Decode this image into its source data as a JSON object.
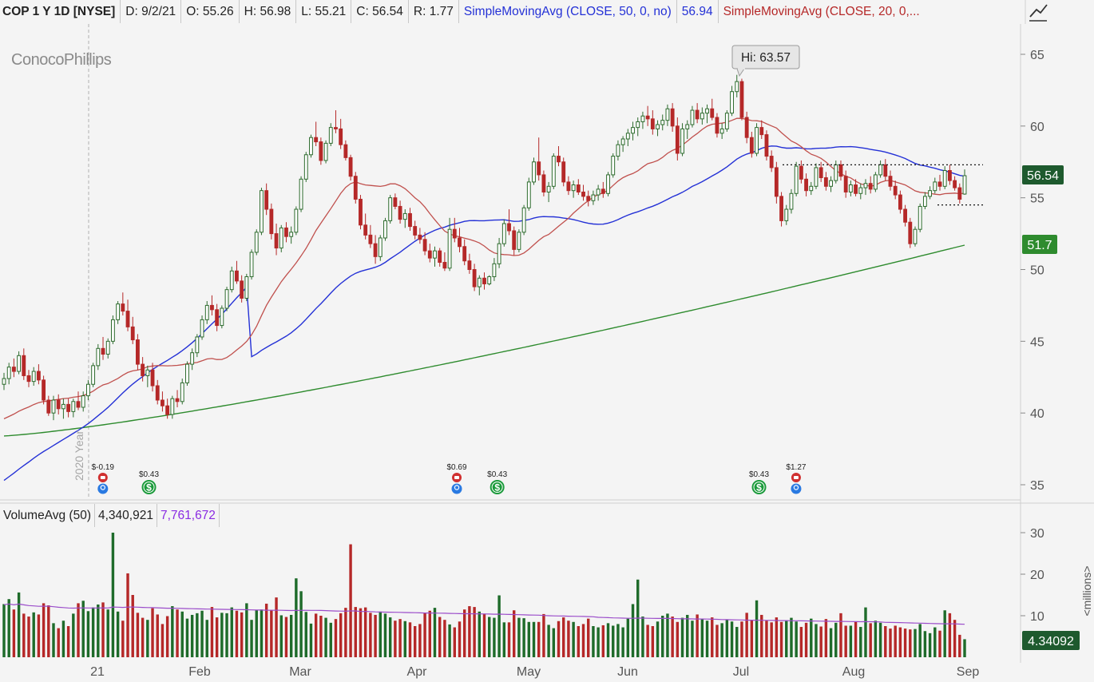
{
  "header": {
    "symbol": "COP 1 Y 1D [NYSE]",
    "date": "D: 9/2/21",
    "open": "O: 55.26",
    "high": "H: 56.98",
    "low": "L: 55.21",
    "close": "C: 56.54",
    "range": "R: 1.77",
    "sma50_label": "SimpleMovingAvg (CLOSE, 50, 0, no)",
    "sma50_value": "56.94",
    "sma20_label": "SimpleMovingAvg (CLOSE, 20, 0,..."
  },
  "logo": "ConocoPhillips",
  "year_marker": "2020 Year",
  "hi_label": "Hi: 63.57",
  "price_badge": "56.54",
  "sma200_badge": "51.7",
  "volume_badge": "4.34092",
  "volume_header": {
    "title": "VolumeAvg (50)",
    "value": "4,340,921",
    "avg": "7,761,672"
  },
  "volume_unit": "<millions>",
  "events": [
    {
      "label": "$-0.19",
      "month_idx": 0.88,
      "type": "earnings"
    },
    {
      "label": "$0.43",
      "month_idx": 1.29,
      "type": "dividend"
    },
    {
      "label": "$0.69",
      "month_idx": 4.03,
      "type": "earnings"
    },
    {
      "label": "$0.43",
      "month_idx": 4.39,
      "type": "dividend"
    },
    {
      "label": "$0.43",
      "month_idx": 6.72,
      "type": "dividend"
    },
    {
      "label": "$1.27",
      "month_idx": 7.05,
      "type": "earnings"
    }
  ],
  "colors": {
    "up": "#2d6b2d",
    "down": "#b52828",
    "sma20": "#c0504d",
    "sma50": "#2431d6",
    "sma200": "#2e8b2e",
    "vol_avg": "#9b4dca",
    "badge_dark": "#1e5a2e",
    "badge_green": "#2e8b2e"
  },
  "chart_data": {
    "type": "candlestick",
    "title": "COP 1 Y 1D [NYSE]",
    "y_axis": {
      "min": 35,
      "max": 65,
      "ticks": [
        35,
        40,
        45,
        50,
        55,
        60,
        65
      ]
    },
    "volume_axis": {
      "min": 0,
      "max": 30,
      "ticks": [
        10,
        20,
        30
      ],
      "unit": "<millions>"
    },
    "x_ticks": [
      "21",
      "Feb",
      "Mar",
      "Apr",
      "May",
      "Jun",
      "Jul",
      "Aug",
      "Sep"
    ],
    "resistance_level": 57.3,
    "support_level": 54.5,
    "candles": [
      [
        42.0,
        42.8,
        41.6,
        42.4
      ],
      [
        42.4,
        43.5,
        42.0,
        43.2
      ],
      [
        43.2,
        43.8,
        42.5,
        42.9
      ],
      [
        42.9,
        44.3,
        42.7,
        44.0
      ],
      [
        44.0,
        44.5,
        42.3,
        42.6
      ],
      [
        42.6,
        43.0,
        41.8,
        42.2
      ],
      [
        42.2,
        43.2,
        41.9,
        42.9
      ],
      [
        42.9,
        43.4,
        42.0,
        42.3
      ],
      [
        42.3,
        42.6,
        40.6,
        40.9
      ],
      [
        40.9,
        41.2,
        39.8,
        40.0
      ],
      [
        40.0,
        41.2,
        39.5,
        40.9
      ],
      [
        40.9,
        41.3,
        39.9,
        40.3
      ],
      [
        40.3,
        41.0,
        39.6,
        40.6
      ],
      [
        40.6,
        41.0,
        39.7,
        40.1
      ],
      [
        40.1,
        41.0,
        39.7,
        40.8
      ],
      [
        40.8,
        41.5,
        40.2,
        40.4
      ],
      [
        40.4,
        41.5,
        40.1,
        41.2
      ],
      [
        41.2,
        42.3,
        40.9,
        42.0
      ],
      [
        42.0,
        43.5,
        41.8,
        43.3
      ],
      [
        43.3,
        44.8,
        43.0,
        44.5
      ],
      [
        44.5,
        45.3,
        43.7,
        44.1
      ],
      [
        44.1,
        45.2,
        43.8,
        45.0
      ],
      [
        45.0,
        46.8,
        44.8,
        46.5
      ],
      [
        46.5,
        47.8,
        46.2,
        47.6
      ],
      [
        47.6,
        48.4,
        46.8,
        47.1
      ],
      [
        47.1,
        47.9,
        45.7,
        46.0
      ],
      [
        46.0,
        46.7,
        44.8,
        45.1
      ],
      [
        45.1,
        45.5,
        43.0,
        43.4
      ],
      [
        43.4,
        43.9,
        42.2,
        42.6
      ],
      [
        42.6,
        43.3,
        41.8,
        43.0
      ],
      [
        43.0,
        43.5,
        41.5,
        41.9
      ],
      [
        41.9,
        42.3,
        40.6,
        40.9
      ],
      [
        40.9,
        41.5,
        40.1,
        40.5
      ],
      [
        40.5,
        41.0,
        39.6,
        39.9
      ],
      [
        39.9,
        41.2,
        39.6,
        41.0
      ],
      [
        41.0,
        41.6,
        40.4,
        40.8
      ],
      [
        40.8,
        42.4,
        40.6,
        42.1
      ],
      [
        42.1,
        43.6,
        41.9,
        43.4
      ],
      [
        43.4,
        44.5,
        43.0,
        44.2
      ],
      [
        44.2,
        45.5,
        43.9,
        45.3
      ],
      [
        45.3,
        46.8,
        45.1,
        46.5
      ],
      [
        46.5,
        47.8,
        46.2,
        47.5
      ],
      [
        47.5,
        48.2,
        46.8,
        47.2
      ],
      [
        47.2,
        47.6,
        45.7,
        46.1
      ],
      [
        46.1,
        47.5,
        45.9,
        47.3
      ],
      [
        47.3,
        48.8,
        47.1,
        48.6
      ],
      [
        48.6,
        50.2,
        48.4,
        49.9
      ],
      [
        49.9,
        50.6,
        49.0,
        49.2
      ],
      [
        49.2,
        49.6,
        47.7,
        48.0
      ],
      [
        48.0,
        49.7,
        47.8,
        49.5
      ],
      [
        49.5,
        51.4,
        49.3,
        51.2
      ],
      [
        51.2,
        52.8,
        51.0,
        52.6
      ],
      [
        52.6,
        55.7,
        52.4,
        55.5
      ],
      [
        55.5,
        56.0,
        53.8,
        54.2
      ],
      [
        54.2,
        54.6,
        52.1,
        52.5
      ],
      [
        52.5,
        53.2,
        51.0,
        51.5
      ],
      [
        51.5,
        53.1,
        51.2,
        52.9
      ],
      [
        52.9,
        53.3,
        51.9,
        52.3
      ],
      [
        52.3,
        53.0,
        51.8,
        52.6
      ],
      [
        52.6,
        54.4,
        52.4,
        54.2
      ],
      [
        54.2,
        56.5,
        54.0,
        56.3
      ],
      [
        56.3,
        58.2,
        56.1,
        58.0
      ],
      [
        58.0,
        59.4,
        57.8,
        59.2
      ],
      [
        59.2,
        60.3,
        58.6,
        58.9
      ],
      [
        58.9,
        59.2,
        57.3,
        57.6
      ],
      [
        57.6,
        59.0,
        57.4,
        58.8
      ],
      [
        58.8,
        60.2,
        58.6,
        59.9
      ],
      [
        59.9,
        61.1,
        59.5,
        59.8
      ],
      [
        59.8,
        60.5,
        58.4,
        58.7
      ],
      [
        58.7,
        59.0,
        57.6,
        57.8
      ],
      [
        57.8,
        58.0,
        56.2,
        56.5
      ],
      [
        56.5,
        56.8,
        54.6,
        54.9
      ],
      [
        54.9,
        55.2,
        52.8,
        53.1
      ],
      [
        53.1,
        53.9,
        52.1,
        52.4
      ],
      [
        52.4,
        53.1,
        51.5,
        51.8
      ],
      [
        51.8,
        52.4,
        50.4,
        50.9
      ],
      [
        50.9,
        52.4,
        50.6,
        52.2
      ],
      [
        52.2,
        53.6,
        52.0,
        53.4
      ],
      [
        53.4,
        55.2,
        53.2,
        55.0
      ],
      [
        55.0,
        55.3,
        54.2,
        54.4
      ],
      [
        54.4,
        54.8,
        53.2,
        53.5
      ],
      [
        53.5,
        54.2,
        52.9,
        53.9
      ],
      [
        53.9,
        54.3,
        52.7,
        53.0
      ],
      [
        53.0,
        53.4,
        52.1,
        52.4
      ],
      [
        52.4,
        52.9,
        51.8,
        52.1
      ],
      [
        52.1,
        52.6,
        51.0,
        51.3
      ],
      [
        51.3,
        51.8,
        50.5,
        50.8
      ],
      [
        50.8,
        51.6,
        50.2,
        51.3
      ],
      [
        51.3,
        51.5,
        50.2,
        50.5
      ],
      [
        50.5,
        51.2,
        49.9,
        50.1
      ],
      [
        50.1,
        53.6,
        49.9,
        52.8
      ],
      [
        52.8,
        53.6,
        51.9,
        52.2
      ],
      [
        52.2,
        52.9,
        51.2,
        51.6
      ],
      [
        51.6,
        52.1,
        50.3,
        50.6
      ],
      [
        50.6,
        51.1,
        49.7,
        50.0
      ],
      [
        50.0,
        50.4,
        48.5,
        48.8
      ],
      [
        48.8,
        49.6,
        48.2,
        49.4
      ],
      [
        49.4,
        49.8,
        48.6,
        49.0
      ],
      [
        49.0,
        49.6,
        48.9,
        49.5
      ],
      [
        49.5,
        50.8,
        49.2,
        50.4
      ],
      [
        50.4,
        52.2,
        50.1,
        51.8
      ],
      [
        51.8,
        53.5,
        51.6,
        53.2
      ],
      [
        53.2,
        54.2,
        52.4,
        52.7
      ],
      [
        52.7,
        53.0,
        51.0,
        51.4
      ],
      [
        51.4,
        52.8,
        51.2,
        52.6
      ],
      [
        52.6,
        54.5,
        52.4,
        54.3
      ],
      [
        54.3,
        56.4,
        54.1,
        56.1
      ],
      [
        56.1,
        57.8,
        55.9,
        57.5
      ],
      [
        57.5,
        59.2,
        56.2,
        56.6
      ],
      [
        56.6,
        56.9,
        55.1,
        55.4
      ],
      [
        55.4,
        56.1,
        54.7,
        55.8
      ],
      [
        55.8,
        58.1,
        55.6,
        57.9
      ],
      [
        57.9,
        58.6,
        57.2,
        57.5
      ],
      [
        57.5,
        57.8,
        55.8,
        56.1
      ],
      [
        56.1,
        56.5,
        55.2,
        55.5
      ],
      [
        55.5,
        56.2,
        55.0,
        55.9
      ],
      [
        55.9,
        56.3,
        55.2,
        55.4
      ],
      [
        55.4,
        55.9,
        54.8,
        55.1
      ],
      [
        55.1,
        55.5,
        54.4,
        54.8
      ],
      [
        54.8,
        55.5,
        54.5,
        55.2
      ],
      [
        55.2,
        55.9,
        54.8,
        55.6
      ],
      [
        55.6,
        56.1,
        55.0,
        55.3
      ],
      [
        55.3,
        56.8,
        55.1,
        56.6
      ],
      [
        56.6,
        58.1,
        56.4,
        57.9
      ],
      [
        57.9,
        59.0,
        57.6,
        58.7
      ],
      [
        58.7,
        59.3,
        58.2,
        59.1
      ],
      [
        59.1,
        59.8,
        58.6,
        59.5
      ],
      [
        59.5,
        60.3,
        59.0,
        59.9
      ],
      [
        59.9,
        60.6,
        59.3,
        60.3
      ],
      [
        60.3,
        61.0,
        59.8,
        60.7
      ],
      [
        60.7,
        61.4,
        60.0,
        60.5
      ],
      [
        60.5,
        61.1,
        59.4,
        59.8
      ],
      [
        59.8,
        60.4,
        59.3,
        60.1
      ],
      [
        60.1,
        60.8,
        59.7,
        60.4
      ],
      [
        60.4,
        61.5,
        60.0,
        61.2
      ],
      [
        61.2,
        61.6,
        59.6,
        60.0
      ],
      [
        60.0,
        60.6,
        57.6,
        58.1
      ],
      [
        58.1,
        60.2,
        57.9,
        59.8
      ],
      [
        59.8,
        60.4,
        59.1,
        60.1
      ],
      [
        60.1,
        61.4,
        59.9,
        61.1
      ],
      [
        61.1,
        61.6,
        60.2,
        60.5
      ],
      [
        60.5,
        61.3,
        60.1,
        60.9
      ],
      [
        60.9,
        61.5,
        60.2,
        61.2
      ],
      [
        61.2,
        61.9,
        60.4,
        60.6
      ],
      [
        60.6,
        60.9,
        59.2,
        59.5
      ],
      [
        59.5,
        60.2,
        59.1,
        59.8
      ],
      [
        59.8,
        61.1,
        59.6,
        60.9
      ],
      [
        60.9,
        62.8,
        60.7,
        62.4
      ],
      [
        62.4,
        63.57,
        62.0,
        63.1
      ],
      [
        63.1,
        63.3,
        60.4,
        60.6
      ],
      [
        60.6,
        61.0,
        58.8,
        59.2
      ],
      [
        59.2,
        59.6,
        57.8,
        58.1
      ],
      [
        58.1,
        60.2,
        57.9,
        59.9
      ],
      [
        59.9,
        60.4,
        59.1,
        59.4
      ],
      [
        59.4,
        59.7,
        57.6,
        57.9
      ],
      [
        57.9,
        58.3,
        56.8,
        57.1
      ],
      [
        57.1,
        57.5,
        54.6,
        55.1
      ],
      [
        55.1,
        55.4,
        53.0,
        53.4
      ],
      [
        53.4,
        54.5,
        53.1,
        54.2
      ],
      [
        54.2,
        55.6,
        53.9,
        55.3
      ],
      [
        55.3,
        57.5,
        55.1,
        57.2
      ],
      [
        57.2,
        57.6,
        56.0,
        56.3
      ],
      [
        56.3,
        56.7,
        55.1,
        55.5
      ],
      [
        55.5,
        56.1,
        55.2,
        55.8
      ],
      [
        55.8,
        57.4,
        55.6,
        57.1
      ],
      [
        57.1,
        57.5,
        56.1,
        56.4
      ],
      [
        56.4,
        56.8,
        55.5,
        55.8
      ],
      [
        55.8,
        56.5,
        55.4,
        56.2
      ],
      [
        56.2,
        57.6,
        56.0,
        57.3
      ],
      [
        57.3,
        57.6,
        56.2,
        56.5
      ],
      [
        56.5,
        56.9,
        55.0,
        55.4
      ],
      [
        55.4,
        56.2,
        55.1,
        55.9
      ],
      [
        55.9,
        56.3,
        55.1,
        55.3
      ],
      [
        55.3,
        56.0,
        54.9,
        55.7
      ],
      [
        55.7,
        56.3,
        55.2,
        56.0
      ],
      [
        56.0,
        56.5,
        55.3,
        55.6
      ],
      [
        55.6,
        56.8,
        55.4,
        56.6
      ],
      [
        56.6,
        57.6,
        56.4,
        57.3
      ],
      [
        57.3,
        57.7,
        56.2,
        56.5
      ],
      [
        56.5,
        56.9,
        55.5,
        55.8
      ],
      [
        55.8,
        56.2,
        54.9,
        55.2
      ],
      [
        55.2,
        55.5,
        53.9,
        54.2
      ],
      [
        54.2,
        54.5,
        53.0,
        53.3
      ],
      [
        53.3,
        53.6,
        51.5,
        51.8
      ],
      [
        51.8,
        53.0,
        51.6,
        52.8
      ],
      [
        52.8,
        54.6,
        52.6,
        54.4
      ],
      [
        54.4,
        55.4,
        54.2,
        55.1
      ],
      [
        55.1,
        55.8,
        54.9,
        55.5
      ],
      [
        55.5,
        56.4,
        55.3,
        56.1
      ],
      [
        56.1,
        56.6,
        55.5,
        55.8
      ],
      [
        55.8,
        57.2,
        55.6,
        56.9
      ],
      [
        56.9,
        57.3,
        55.9,
        56.2
      ],
      [
        56.2,
        56.5,
        55.5,
        55.7
      ],
      [
        55.7,
        56.0,
        54.6,
        54.9
      ],
      [
        55.26,
        56.98,
        55.21,
        56.54
      ]
    ],
    "volumes": [
      12.8,
      14.0,
      11.5,
      15.6,
      10.5,
      9.8,
      10.8,
      10.3,
      13.0,
      12.5,
      8.2,
      7.0,
      8.8,
      7.5,
      10.5,
      13.0,
      13.6,
      11.1,
      12.0,
      12.7,
      13.2,
      11.5,
      30.0,
      11.0,
      8.8,
      20.2,
      15.0,
      10.7,
      9.5,
      9.0,
      11.8,
      10.3,
      8.0,
      9.9,
      12.3,
      11.5,
      11.0,
      9.3,
      10.2,
      10.6,
      11.2,
      9.0,
      12.1,
      9.6,
      10.7,
      10.6,
      12.0,
      11.2,
      10.8,
      13.0,
      9.0,
      11.4,
      11.5,
      12.9,
      11.4,
      14.4,
      10.1,
      9.7,
      10.2,
      19.0,
      15.9,
      10.9,
      8.1,
      10.5,
      10.0,
      9.5,
      8.3,
      9.2,
      10.6,
      11.9,
      27.2,
      12.1,
      11.8,
      12.0,
      10.7,
      10.2,
      11.0,
      10.5,
      9.6,
      8.8,
      9.2,
      8.7,
      8.4,
      7.5,
      8.0,
      10.6,
      11.2,
      11.9,
      9.7,
      9.0,
      7.9,
      7.2,
      8.6,
      11.5,
      12.3,
      12.1,
      11.0,
      10.5,
      9.7,
      9.5,
      14.9,
      8.4,
      8.4,
      11.3,
      9.5,
      9.4,
      8.5,
      8.5,
      8.5,
      10.4,
      7.8,
      7.0,
      8.7,
      9.6,
      8.8,
      8.5,
      7.5,
      8.0,
      9.3,
      7.5,
      7.2,
      7.7,
      8.2,
      7.6,
      8.0,
      7.2,
      9.3,
      12.8,
      18.7,
      9.8,
      7.8,
      7.5,
      8.6,
      10.0,
      10.5,
      9.8,
      8.5,
      9.5,
      10.2,
      8.8,
      10.3,
      9.3,
      8.8,
      9.6,
      7.8,
      8.2,
      9.0,
      8.6,
      7.3,
      8.6,
      10.7,
      9.0,
      13.7,
      10.2,
      8.8,
      8.4,
      9.6,
      8.5,
      8.9,
      9.5,
      8.6,
      7.3,
      8.3,
      9.3,
      8.0,
      7.4,
      9.2,
      7.0,
      8.3,
      10.6,
      7.6,
      7.6,
      8.5,
      7.3,
      12.0,
      8.2,
      8.8,
      8.3,
      7.5,
      6.9,
      7.6,
      7.2,
      6.9,
      6.7,
      6.8,
      8.0,
      6.3,
      5.8,
      7.2,
      6.4,
      11.3,
      10.6,
      9.0,
      5.4,
      4.34
    ]
  }
}
